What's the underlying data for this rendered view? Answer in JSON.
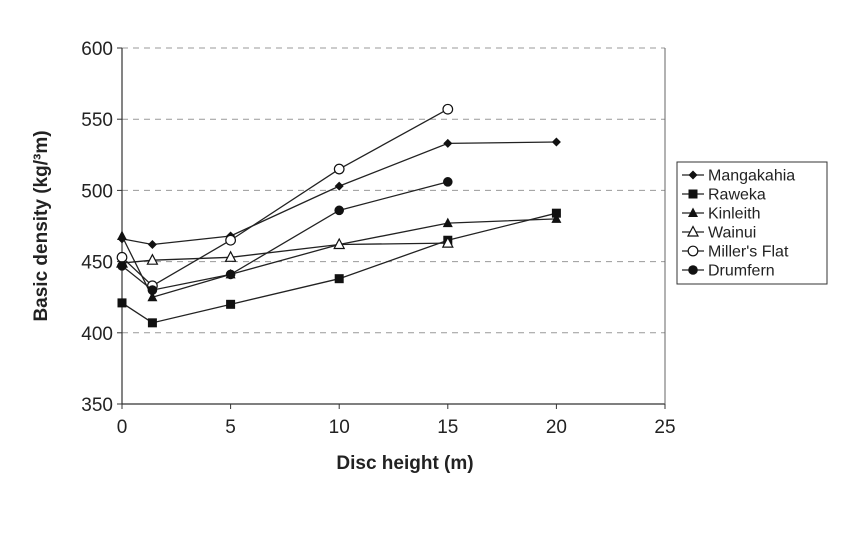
{
  "chart_data": {
    "type": "line",
    "title": "",
    "xlabel": "Disc height (m)",
    "ylabel": "Basic density (kg/³m)",
    "xlim": [
      0,
      25
    ],
    "ylim": [
      350,
      600
    ],
    "xticks": [
      0,
      5,
      10,
      15,
      20,
      25
    ],
    "yticks": [
      350,
      400,
      450,
      500,
      550,
      600
    ],
    "grid": "horizontal-dashed",
    "legend_position": "right",
    "series": [
      {
        "name": "Mangakahia",
        "marker": "diamond",
        "points": [
          [
            0,
            466
          ],
          [
            1.4,
            462
          ],
          [
            5,
            468
          ],
          [
            10,
            503
          ],
          [
            15,
            533
          ],
          [
            20,
            534
          ]
        ]
      },
      {
        "name": "Raweka",
        "marker": "square",
        "points": [
          [
            0,
            421
          ],
          [
            1.4,
            407
          ],
          [
            5,
            420
          ],
          [
            10,
            438
          ],
          [
            15,
            465
          ],
          [
            20,
            484
          ]
        ]
      },
      {
        "name": "Kinleith",
        "marker": "triangle",
        "points": [
          [
            0,
            468
          ],
          [
            1.4,
            425
          ],
          [
            5,
            441
          ],
          [
            10,
            462
          ],
          [
            15,
            477
          ],
          [
            20,
            480
          ]
        ]
      },
      {
        "name": "Wainui",
        "marker": "triangle-open",
        "points": [
          [
            0,
            449
          ],
          [
            1.4,
            451
          ],
          [
            5,
            453
          ],
          [
            10,
            462
          ],
          [
            15,
            463
          ]
        ]
      },
      {
        "name": "Miller's Flat",
        "marker": "circle-open",
        "points": [
          [
            0,
            453
          ],
          [
            1.4,
            433
          ],
          [
            5,
            465
          ],
          [
            10,
            515
          ],
          [
            15,
            557
          ]
        ]
      },
      {
        "name": "Drumfern",
        "marker": "circle",
        "points": [
          [
            0,
            447
          ],
          [
            1.4,
            430
          ],
          [
            5,
            441
          ],
          [
            10,
            486
          ],
          [
            15,
            506
          ]
        ]
      }
    ]
  }
}
